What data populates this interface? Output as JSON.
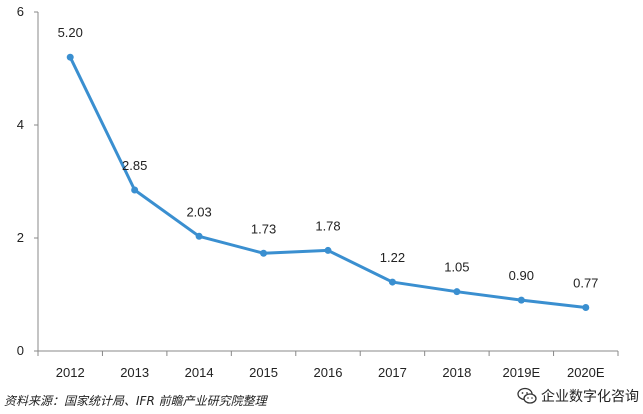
{
  "chart_data": {
    "type": "line",
    "categories": [
      "2012",
      "2013",
      "2014",
      "2015",
      "2016",
      "2017",
      "2018",
      "2019E",
      "2020E"
    ],
    "values": [
      5.2,
      2.85,
      2.03,
      1.73,
      1.78,
      1.22,
      1.05,
      0.9,
      0.77
    ],
    "data_labels": [
      "5.20",
      "2.85",
      "2.03",
      "1.73",
      "1.78",
      "1.22",
      "1.05",
      "0.90",
      "0.77"
    ],
    "title": "",
    "xlabel": "",
    "ylabel": "",
    "ylim": [
      0,
      6
    ],
    "yticks": [
      "0",
      "2",
      "4",
      "6"
    ],
    "ytick_values": [
      0,
      2,
      4,
      6
    ],
    "grid": false,
    "legend": "none",
    "line_color": "#3a8fd0"
  },
  "source_note": "资料来源：国家统计局、IFR 前瞻产业研究院整理",
  "watermark": {
    "icon": "wechat-icon",
    "text": "企业数字化咨询"
  }
}
